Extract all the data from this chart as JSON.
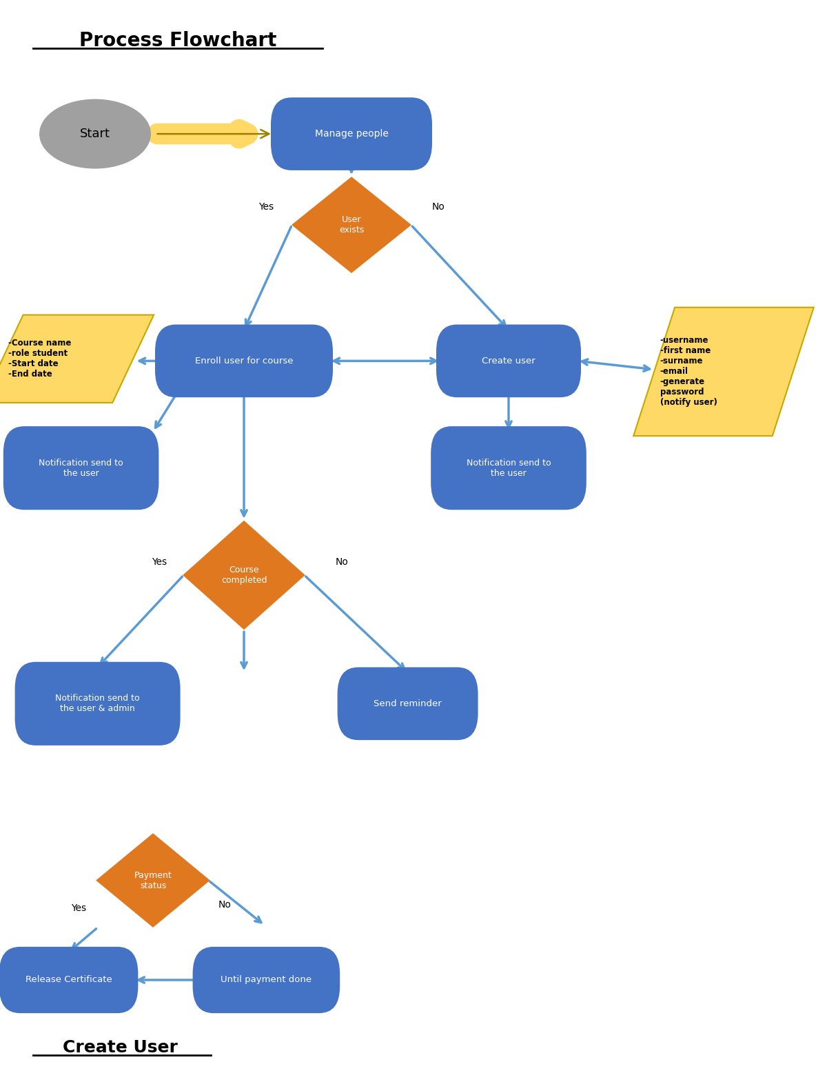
{
  "title": "Process Flowchart",
  "subtitle": "Create User",
  "bg_color": "#ffffff",
  "blue_box": "#4472C4",
  "orange_diamond": "#E07820",
  "yellow_para": "#FFD966",
  "yellow_para_border": "#C8A800",
  "gray_ellipse": "#A0A0A0",
  "arrow_color": "#5B9BD5",
  "yellow_arrow_fill": "#FFD966",
  "yellow_arrow_border": "#A08000",
  "text_white": "#ffffff",
  "text_black": "#000000",
  "left_para_text": "-Course name\n-role student\n-Start date\n-End date",
  "right_para_text": "-username\n-first name\n-surname\n-email\n-generate\npassword\n(notify user)"
}
